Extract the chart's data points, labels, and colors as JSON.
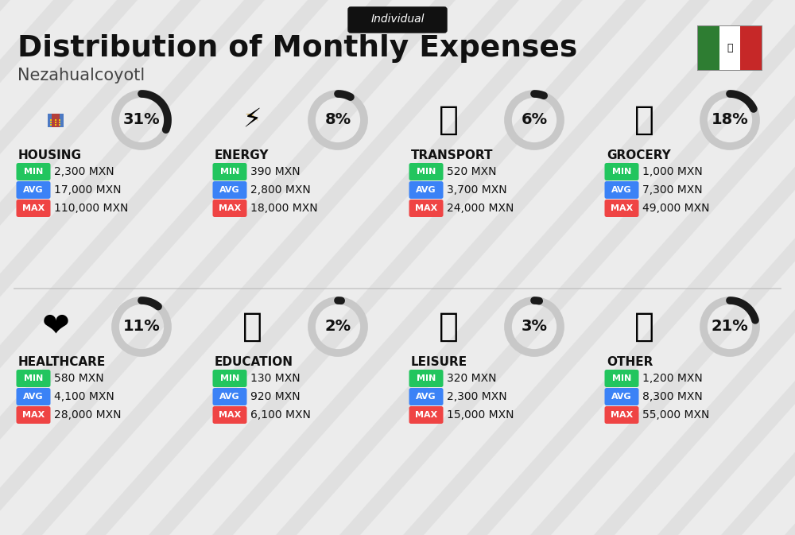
{
  "title": "Distribution of Monthly Expenses",
  "subtitle": "Nezahualcoyotl",
  "label_individual": "Individual",
  "bg_color": "#ececec",
  "categories": [
    {
      "name": "HOUSING",
      "pct": 31,
      "min_val": "2,300 MXN",
      "avg_val": "17,000 MXN",
      "max_val": "110,000 MXN",
      "row": 0,
      "col": 0
    },
    {
      "name": "ENERGY",
      "pct": 8,
      "min_val": "390 MXN",
      "avg_val": "2,800 MXN",
      "max_val": "18,000 MXN",
      "row": 0,
      "col": 1
    },
    {
      "name": "TRANSPORT",
      "pct": 6,
      "min_val": "520 MXN",
      "avg_val": "3,700 MXN",
      "max_val": "24,000 MXN",
      "row": 0,
      "col": 2
    },
    {
      "name": "GROCERY",
      "pct": 18,
      "min_val": "1,000 MXN",
      "avg_val": "7,300 MXN",
      "max_val": "49,000 MXN",
      "row": 0,
      "col": 3
    },
    {
      "name": "HEALTHCARE",
      "pct": 11,
      "min_val": "580 MXN",
      "avg_val": "4,100 MXN",
      "max_val": "28,000 MXN",
      "row": 1,
      "col": 0
    },
    {
      "name": "EDUCATION",
      "pct": 2,
      "min_val": "130 MXN",
      "avg_val": "920 MXN",
      "max_val": "6,100 MXN",
      "row": 1,
      "col": 1
    },
    {
      "name": "LEISURE",
      "pct": 3,
      "min_val": "320 MXN",
      "avg_val": "2,300 MXN",
      "max_val": "15,000 MXN",
      "row": 1,
      "col": 2
    },
    {
      "name": "OTHER",
      "pct": 21,
      "min_val": "1,200 MXN",
      "avg_val": "8,300 MXN",
      "max_val": "55,000 MXN",
      "row": 1,
      "col": 3
    }
  ],
  "min_color": "#22c55e",
  "avg_color": "#3b82f6",
  "max_color": "#ef4444",
  "donut_active_color": "#1a1a1a",
  "donut_inactive_color": "#c8c8c8",
  "flag_green": "#2e7d32",
  "flag_white": "#ffffff",
  "flag_red": "#c62828",
  "icon_emojis": [
    "🏙",
    "⚡",
    "🚌",
    "🛒",
    "❤",
    "🎓",
    "🛍",
    "💰"
  ],
  "stripe_color": "#d5d5d5",
  "stripe_alpha": 0.5
}
